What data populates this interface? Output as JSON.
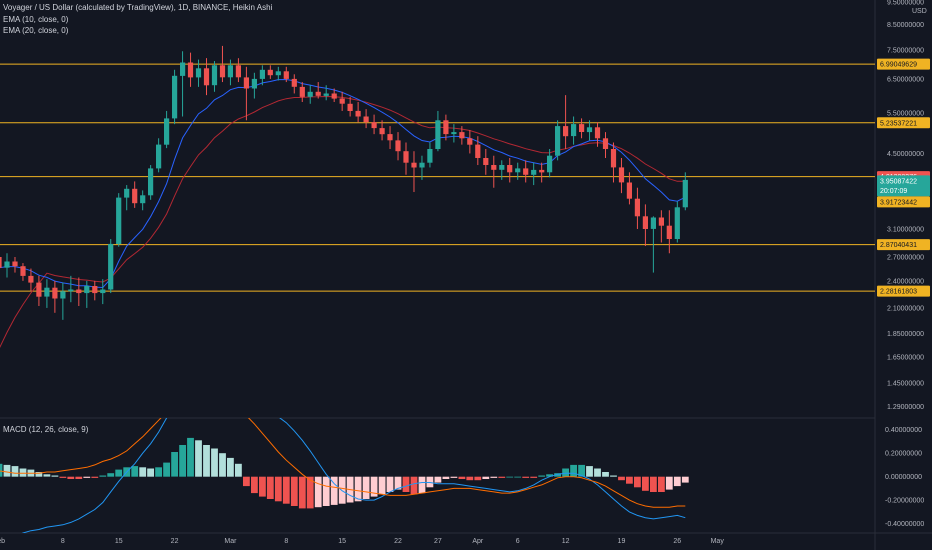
{
  "header": {
    "title": "Voyager / US Dollar (calculated by TradingView), 1D, BINANCE, Heikin Ashi",
    "ema10": "EMA (10, close, 0)",
    "ema20": "EMA (20, close, 0)",
    "macd": "MACD (12, 26, close, 9)",
    "currency": "USD",
    "countdown": "20:07:09"
  },
  "colors": {
    "background": "#131722",
    "up": "#26a69a",
    "down": "#ef5350",
    "ema10": "#2962ff",
    "ema20": "#b22833",
    "level": "#f0b323",
    "macd_line": "#2196f3",
    "signal_line": "#ff6d00",
    "hist_up_strong": "#26a69a",
    "hist_up_weak": "#b2dfdb",
    "hist_down_strong": "#ef5350",
    "hist_down_weak": "#ffcdd2"
  },
  "chart_data": {
    "type": "candlestick",
    "x_tick_labels": [
      "Feb",
      "8",
      "15",
      "22",
      "Mar",
      "8",
      "15",
      "22",
      "27",
      "Apr",
      "6",
      "12",
      "19",
      "26",
      "May"
    ],
    "price_axis": {
      "scale": "log",
      "ylim": [
        1.22,
        9.5
      ],
      "tick_labels": [
        "9.50000000",
        "8.50000000",
        "7.50000000",
        "6.50000000",
        "5.50000000",
        "4.50000000",
        "3.10000000",
        "2.70000000",
        "2.40000000",
        "2.10000000",
        "1.85000000",
        "1.65000000",
        "1.45000000",
        "1.29000000"
      ]
    },
    "horizontal_levels": [
      "6.99049629",
      "5.23537221",
      "4.01308376",
      "2.87040431",
      "2.28161803"
    ],
    "last_price": "3.95087422",
    "ema_label": "3.91723442",
    "level_values": [
      6.99049629,
      5.23537221,
      4.01308376,
      2.87040431,
      2.28161803
    ],
    "candles": [
      {
        "date": "2021-01-31",
        "o": 2.7,
        "h": 2.78,
        "l": 2.48,
        "c": 2.56
      },
      {
        "date": "2021-02-01",
        "o": 2.56,
        "h": 2.75,
        "l": 2.44,
        "c": 2.64
      },
      {
        "date": "2021-02-02",
        "o": 2.64,
        "h": 2.7,
        "l": 2.5,
        "c": 2.58
      },
      {
        "date": "2021-02-03",
        "o": 2.58,
        "h": 2.62,
        "l": 2.4,
        "c": 2.46
      },
      {
        "date": "2021-02-04",
        "o": 2.46,
        "h": 2.55,
        "l": 2.28,
        "c": 2.38
      },
      {
        "date": "2021-02-05",
        "o": 2.38,
        "h": 2.46,
        "l": 2.12,
        "c": 2.22
      },
      {
        "date": "2021-02-06",
        "o": 2.22,
        "h": 2.42,
        "l": 2.1,
        "c": 2.32
      },
      {
        "date": "2021-02-07",
        "o": 2.32,
        "h": 2.4,
        "l": 2.05,
        "c": 2.2
      },
      {
        "date": "2021-02-08",
        "o": 2.2,
        "h": 2.38,
        "l": 1.98,
        "c": 2.28
      },
      {
        "date": "2021-02-09",
        "o": 2.28,
        "h": 2.46,
        "l": 2.16,
        "c": 2.3
      },
      {
        "date": "2021-02-10",
        "o": 2.3,
        "h": 2.44,
        "l": 2.12,
        "c": 2.26
      },
      {
        "date": "2021-02-11",
        "o": 2.26,
        "h": 2.4,
        "l": 2.1,
        "c": 2.34
      },
      {
        "date": "2021-02-12",
        "o": 2.34,
        "h": 2.4,
        "l": 2.18,
        "c": 2.26
      },
      {
        "date": "2021-02-13",
        "o": 2.26,
        "h": 2.42,
        "l": 2.14,
        "c": 2.3
      },
      {
        "date": "2021-02-14",
        "o": 2.3,
        "h": 2.95,
        "l": 2.26,
        "c": 2.88
      },
      {
        "date": "2021-02-15",
        "o": 2.88,
        "h": 3.7,
        "l": 2.84,
        "c": 3.62
      },
      {
        "date": "2021-02-16",
        "o": 3.62,
        "h": 3.85,
        "l": 3.4,
        "c": 3.78
      },
      {
        "date": "2021-02-17",
        "o": 3.78,
        "h": 3.92,
        "l": 3.44,
        "c": 3.52
      },
      {
        "date": "2021-02-18",
        "o": 3.52,
        "h": 3.75,
        "l": 3.4,
        "c": 3.66
      },
      {
        "date": "2021-02-19",
        "o": 3.66,
        "h": 4.25,
        "l": 3.58,
        "c": 4.18
      },
      {
        "date": "2021-02-20",
        "o": 4.18,
        "h": 4.85,
        "l": 4.1,
        "c": 4.7
      },
      {
        "date": "2021-02-21",
        "o": 4.7,
        "h": 5.55,
        "l": 4.62,
        "c": 5.35
      },
      {
        "date": "2021-02-22",
        "o": 5.35,
        "h": 6.8,
        "l": 5.2,
        "c": 6.6
      },
      {
        "date": "2021-02-23",
        "o": 6.6,
        "h": 7.45,
        "l": 5.4,
        "c": 7.05
      },
      {
        "date": "2021-02-24",
        "o": 7.05,
        "h": 7.4,
        "l": 6.25,
        "c": 6.55
      },
      {
        "date": "2021-02-25",
        "o": 6.55,
        "h": 7.15,
        "l": 6.25,
        "c": 6.85
      },
      {
        "date": "2021-02-26",
        "o": 6.85,
        "h": 7.2,
        "l": 6.0,
        "c": 6.3
      },
      {
        "date": "2021-02-27",
        "o": 6.3,
        "h": 7.1,
        "l": 6.1,
        "c": 6.95
      },
      {
        "date": "2021-02-28",
        "o": 6.95,
        "h": 7.65,
        "l": 6.4,
        "c": 6.55
      },
      {
        "date": "2021-03-01",
        "o": 6.55,
        "h": 7.15,
        "l": 6.3,
        "c": 6.95
      },
      {
        "date": "2021-03-02",
        "o": 6.95,
        "h": 7.2,
        "l": 6.4,
        "c": 6.55
      },
      {
        "date": "2021-03-03",
        "o": 6.55,
        "h": 6.9,
        "l": 5.3,
        "c": 6.2
      },
      {
        "date": "2021-03-04",
        "o": 6.2,
        "h": 6.7,
        "l": 5.9,
        "c": 6.5
      },
      {
        "date": "2021-03-05",
        "o": 6.5,
        "h": 6.95,
        "l": 6.3,
        "c": 6.8
      },
      {
        "date": "2021-03-06",
        "o": 6.8,
        "h": 6.95,
        "l": 6.5,
        "c": 6.62
      },
      {
        "date": "2021-03-07",
        "o": 6.62,
        "h": 6.9,
        "l": 6.45,
        "c": 6.75
      },
      {
        "date": "2021-03-08",
        "o": 6.75,
        "h": 6.9,
        "l": 6.4,
        "c": 6.5
      },
      {
        "date": "2021-03-09",
        "o": 6.5,
        "h": 6.65,
        "l": 6.05,
        "c": 6.25
      },
      {
        "date": "2021-03-10",
        "o": 6.25,
        "h": 6.4,
        "l": 5.8,
        "c": 5.95
      },
      {
        "date": "2021-03-11",
        "o": 5.95,
        "h": 6.3,
        "l": 5.75,
        "c": 6.1
      },
      {
        "date": "2021-03-12",
        "o": 6.1,
        "h": 6.4,
        "l": 5.9,
        "c": 5.98
      },
      {
        "date": "2021-03-13",
        "o": 5.98,
        "h": 6.3,
        "l": 5.85,
        "c": 6.05
      },
      {
        "date": "2021-03-14",
        "o": 6.05,
        "h": 6.2,
        "l": 5.8,
        "c": 5.9
      },
      {
        "date": "2021-03-15",
        "o": 5.9,
        "h": 6.1,
        "l": 5.55,
        "c": 5.75
      },
      {
        "date": "2021-03-16",
        "o": 5.75,
        "h": 5.95,
        "l": 5.4,
        "c": 5.55
      },
      {
        "date": "2021-03-17",
        "o": 5.55,
        "h": 5.8,
        "l": 5.25,
        "c": 5.4
      },
      {
        "date": "2021-03-18",
        "o": 5.4,
        "h": 5.6,
        "l": 5.1,
        "c": 5.25
      },
      {
        "date": "2021-03-19",
        "o": 5.25,
        "h": 5.45,
        "l": 4.95,
        "c": 5.1
      },
      {
        "date": "2021-03-20",
        "o": 5.1,
        "h": 5.3,
        "l": 4.8,
        "c": 4.95
      },
      {
        "date": "2021-03-21",
        "o": 4.95,
        "h": 5.15,
        "l": 4.6,
        "c": 4.8
      },
      {
        "date": "2021-03-22",
        "o": 4.8,
        "h": 5.0,
        "l": 4.35,
        "c": 4.55
      },
      {
        "date": "2021-03-23",
        "o": 4.55,
        "h": 4.75,
        "l": 4.05,
        "c": 4.3
      },
      {
        "date": "2021-03-24",
        "o": 4.3,
        "h": 4.55,
        "l": 3.72,
        "c": 4.2
      },
      {
        "date": "2021-03-25",
        "o": 4.2,
        "h": 4.45,
        "l": 3.95,
        "c": 4.3
      },
      {
        "date": "2021-03-26",
        "o": 4.3,
        "h": 4.75,
        "l": 4.2,
        "c": 4.6
      },
      {
        "date": "2021-03-27",
        "o": 4.6,
        "h": 5.55,
        "l": 4.55,
        "c": 5.3
      },
      {
        "date": "2021-03-28",
        "o": 5.3,
        "h": 5.45,
        "l": 4.8,
        "c": 4.95
      },
      {
        "date": "2021-03-29",
        "o": 4.95,
        "h": 5.2,
        "l": 4.75,
        "c": 5.0
      },
      {
        "date": "2021-03-30",
        "o": 5.0,
        "h": 5.15,
        "l": 4.7,
        "c": 4.85
      },
      {
        "date": "2021-03-31",
        "o": 4.85,
        "h": 5.05,
        "l": 4.5,
        "c": 4.7
      },
      {
        "date": "2021-04-01",
        "o": 4.7,
        "h": 4.9,
        "l": 4.25,
        "c": 4.4
      },
      {
        "date": "2021-04-02",
        "o": 4.4,
        "h": 4.6,
        "l": 4.05,
        "c": 4.25
      },
      {
        "date": "2021-04-03",
        "o": 4.25,
        "h": 4.45,
        "l": 3.8,
        "c": 4.15
      },
      {
        "date": "2021-04-04",
        "o": 4.15,
        "h": 4.35,
        "l": 3.95,
        "c": 4.25
      },
      {
        "date": "2021-04-05",
        "o": 4.25,
        "h": 4.4,
        "l": 3.9,
        "c": 4.1
      },
      {
        "date": "2021-04-06",
        "o": 4.1,
        "h": 4.3,
        "l": 3.95,
        "c": 4.18
      },
      {
        "date": "2021-04-07",
        "o": 4.18,
        "h": 4.35,
        "l": 3.9,
        "c": 4.05
      },
      {
        "date": "2021-04-08",
        "o": 4.05,
        "h": 4.3,
        "l": 3.85,
        "c": 4.15
      },
      {
        "date": "2021-04-09",
        "o": 4.15,
        "h": 4.3,
        "l": 3.9,
        "c": 4.1
      },
      {
        "date": "2021-04-10",
        "o": 4.1,
        "h": 4.6,
        "l": 4.0,
        "c": 4.45
      },
      {
        "date": "2021-04-11",
        "o": 4.45,
        "h": 5.3,
        "l": 4.35,
        "c": 5.15
      },
      {
        "date": "2021-04-12",
        "o": 5.15,
        "h": 6.0,
        "l": 4.6,
        "c": 4.9
      },
      {
        "date": "2021-04-13",
        "o": 4.9,
        "h": 5.4,
        "l": 4.7,
        "c": 5.2
      },
      {
        "date": "2021-04-14",
        "o": 5.2,
        "h": 5.35,
        "l": 4.85,
        "c": 5.0
      },
      {
        "date": "2021-04-15",
        "o": 5.0,
        "h": 5.3,
        "l": 4.8,
        "c": 5.12
      },
      {
        "date": "2021-04-16",
        "o": 5.12,
        "h": 5.25,
        "l": 4.65,
        "c": 4.85
      },
      {
        "date": "2021-04-17",
        "o": 4.85,
        "h": 5.0,
        "l": 4.4,
        "c": 4.6
      },
      {
        "date": "2021-04-18",
        "o": 4.6,
        "h": 4.75,
        "l": 3.9,
        "c": 4.2
      },
      {
        "date": "2021-04-19",
        "o": 4.2,
        "h": 4.4,
        "l": 3.7,
        "c": 3.9
      },
      {
        "date": "2021-04-20",
        "o": 3.9,
        "h": 4.1,
        "l": 3.5,
        "c": 3.6
      },
      {
        "date": "2021-04-21",
        "o": 3.6,
        "h": 3.8,
        "l": 3.1,
        "c": 3.3
      },
      {
        "date": "2021-04-22",
        "o": 3.3,
        "h": 3.5,
        "l": 2.85,
        "c": 3.1
      },
      {
        "date": "2021-04-23",
        "o": 3.1,
        "h": 3.3,
        "l": 2.5,
        "c": 3.28
      },
      {
        "date": "2021-04-24",
        "o": 3.28,
        "h": 3.4,
        "l": 2.9,
        "c": 3.15
      },
      {
        "date": "2021-04-25",
        "o": 3.15,
        "h": 3.4,
        "l": 2.75,
        "c": 2.95
      },
      {
        "date": "2021-04-26",
        "o": 2.95,
        "h": 3.55,
        "l": 2.9,
        "c": 3.45
      },
      {
        "date": "2021-04-27",
        "o": 3.45,
        "h": 4.1,
        "l": 3.4,
        "c": 3.95
      }
    ],
    "macd": {
      "ylim": [
        -0.48,
        0.5
      ],
      "tick_labels": [
        "0.40000000",
        "0.20000000",
        "0.00000000",
        "-0.20000000",
        "-0.40000000"
      ],
      "histogram": [
        0.11,
        0.1,
        0.09,
        0.07,
        0.06,
        0.04,
        0.02,
        0.01,
        -0.01,
        -0.02,
        -0.02,
        -0.01,
        -0.01,
        0.01,
        0.03,
        0.06,
        0.08,
        0.09,
        0.08,
        0.07,
        0.08,
        0.12,
        0.21,
        0.27,
        0.33,
        0.31,
        0.27,
        0.24,
        0.2,
        0.16,
        0.11,
        -0.08,
        -0.14,
        -0.17,
        -0.19,
        -0.21,
        -0.23,
        -0.25,
        -0.27,
        -0.27,
        -0.26,
        -0.25,
        -0.24,
        -0.23,
        -0.22,
        -0.21,
        -0.19,
        -0.17,
        -0.15,
        -0.13,
        -0.11,
        -0.13,
        -0.15,
        -0.14,
        -0.09,
        -0.05,
        -0.02,
        -0.01,
        -0.02,
        -0.03,
        -0.03,
        -0.02,
        -0.01,
        -0.01,
        0.0,
        0.0,
        -0.01,
        -0.01,
        0.01,
        0.02,
        0.03,
        0.07,
        0.1,
        0.1,
        0.09,
        0.07,
        0.04,
        0.01,
        -0.03,
        -0.06,
        -0.09,
        -0.12,
        -0.13,
        -0.13,
        -0.11,
        -0.08,
        -0.05
      ],
      "macd_line": [
        -0.6,
        -0.55,
        -0.51,
        -0.48,
        -0.46,
        -0.45,
        -0.43,
        -0.42,
        -0.41,
        -0.39,
        -0.36,
        -0.32,
        -0.28,
        -0.22,
        -0.13,
        -0.04,
        0.04,
        0.11,
        0.2,
        0.28,
        0.38,
        0.5,
        0.62,
        0.7,
        0.74,
        0.76,
        0.76,
        0.75,
        0.73,
        0.7,
        0.67,
        0.64,
        0.61,
        0.58,
        0.55,
        0.51,
        0.46,
        0.39,
        0.31,
        0.22,
        0.12,
        0.02,
        -0.06,
        -0.12,
        -0.16,
        -0.19,
        -0.2,
        -0.2,
        -0.17,
        -0.13,
        -0.1,
        -0.08,
        -0.06,
        -0.05,
        -0.05,
        -0.06,
        -0.06,
        -0.06,
        -0.07,
        -0.08,
        -0.09,
        -0.1,
        -0.11,
        -0.12,
        -0.13,
        -0.12,
        -0.1,
        -0.07,
        -0.03,
        0.0,
        0.02,
        0.03,
        0.03,
        0.01,
        -0.02,
        -0.07,
        -0.13,
        -0.19,
        -0.25,
        -0.3,
        -0.33,
        -0.35,
        -0.36,
        -0.35,
        -0.34,
        -0.33,
        -0.35
      ],
      "signal_line": [
        0.05,
        0.04,
        0.03,
        0.03,
        0.03,
        0.03,
        0.04,
        0.04,
        0.05,
        0.06,
        0.07,
        0.08,
        0.1,
        0.13,
        0.15,
        0.18,
        0.22,
        0.28,
        0.34,
        0.41,
        0.48,
        0.55,
        0.61,
        0.65,
        0.68,
        0.69,
        0.68,
        0.67,
        0.65,
        0.62,
        0.58,
        0.52,
        0.45,
        0.37,
        0.29,
        0.21,
        0.14,
        0.08,
        0.02,
        -0.03,
        -0.06,
        -0.08,
        -0.09,
        -0.1,
        -0.11,
        -0.12,
        -0.13,
        -0.14,
        -0.15,
        -0.16,
        -0.16,
        -0.16,
        -0.15,
        -0.14,
        -0.13,
        -0.12,
        -0.11,
        -0.1,
        -0.1,
        -0.1,
        -0.11,
        -0.12,
        -0.13,
        -0.14,
        -0.14,
        -0.13,
        -0.11,
        -0.09,
        -0.07,
        -0.04,
        -0.01,
        0.0,
        0.0,
        -0.01,
        -0.03,
        -0.05,
        -0.08,
        -0.12,
        -0.16,
        -0.2,
        -0.23,
        -0.25,
        -0.26,
        -0.26,
        -0.26,
        -0.25,
        -0.25
      ]
    }
  }
}
